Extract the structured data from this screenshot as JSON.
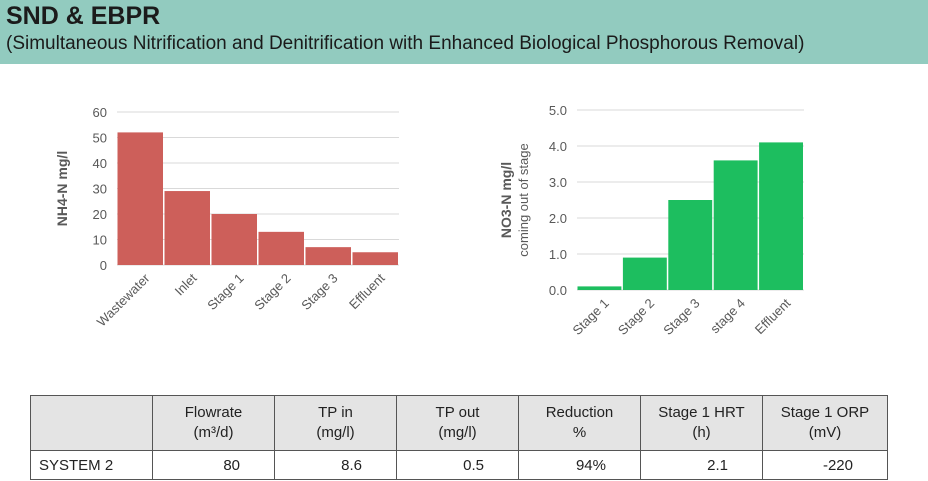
{
  "header": {
    "title": "SND & EBPR",
    "subtitle": "(Simultaneous Nitrification and Denitrification with Enhanced Biological Phosphorous Removal)"
  },
  "colors": {
    "header_bg": "#92cbbf",
    "chart1_bar": "#cd5f5a",
    "chart2_bar": "#1dbe5f"
  },
  "chart_data": [
    {
      "type": "bar",
      "categories": [
        "Wastewater",
        "Inlet",
        "Stage 1",
        "Stage 2",
        "Stage 3",
        "Effluent"
      ],
      "values": [
        52,
        29,
        20,
        13,
        7,
        5
      ],
      "title": "",
      "xlabel": "",
      "ylabel": "NH4-N mg/l",
      "ylim": [
        0,
        60
      ],
      "yticks": [
        "0",
        "10",
        "20",
        "30",
        "40",
        "50",
        "60"
      ],
      "grid": true,
      "legend": "none"
    },
    {
      "type": "bar",
      "categories": [
        "Stage 1",
        "Stage 2",
        "Stage 3",
        "stage 4",
        "Effluent"
      ],
      "values": [
        0.1,
        0.9,
        2.5,
        3.6,
        4.1
      ],
      "title": "",
      "xlabel": "",
      "ylabel": "NO3-N mg/l",
      "ylabel2": "coming out of stage",
      "ylim": [
        0,
        5
      ],
      "yticks": [
        "0.0",
        "1.0",
        "2.0",
        "3.0",
        "4.0",
        "5.0"
      ],
      "grid": true,
      "legend": "none"
    }
  ],
  "table": {
    "headers": [
      {
        "line1": "",
        "line2": ""
      },
      {
        "line1": "Flowrate",
        "line2": "(m³/d)"
      },
      {
        "line1": "TP in",
        "line2": "(mg/l)"
      },
      {
        "line1": "TP out",
        "line2": "(mg/l)"
      },
      {
        "line1": "Reduction",
        "line2": "%"
      },
      {
        "line1": "Stage 1 HRT",
        "line2": "(h)"
      },
      {
        "line1": "Stage 1 ORP",
        "line2": "(mV)"
      }
    ],
    "rows": [
      {
        "cells": [
          "SYSTEM 2",
          "80",
          "8.6",
          "0.5",
          "94%",
          "2.1",
          "-220"
        ]
      }
    ]
  }
}
